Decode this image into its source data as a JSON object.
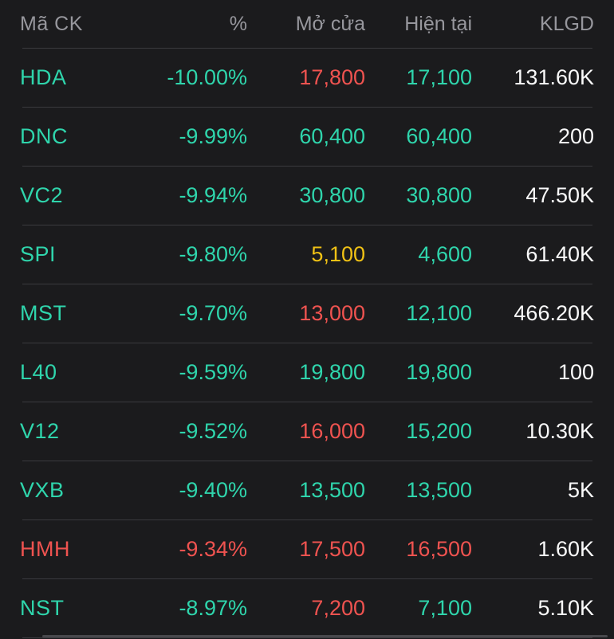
{
  "colors": {
    "background": "#1b1b1d",
    "divider": "#3a3a3e",
    "header_text": "#97979d",
    "scrollbar": "#48484c",
    "teal": "#2fd5ac",
    "red": "#ef5350",
    "yellow": "#f1c215",
    "white": "#fafafa"
  },
  "table": {
    "columns": [
      {
        "label": "Mã CK"
      },
      {
        "label": "%"
      },
      {
        "label": "Mở cửa"
      },
      {
        "label": "Hiện tại"
      },
      {
        "label": "KLGD"
      }
    ],
    "rows": [
      {
        "code": "HDA",
        "pct": "-10.00%",
        "open": "17,800",
        "current": "17,100",
        "volume": "131.60K",
        "code_color": "teal",
        "pct_color": "teal",
        "open_color": "red",
        "current_color": "teal",
        "volume_color": "white"
      },
      {
        "code": "DNC",
        "pct": "-9.99%",
        "open": "60,400",
        "current": "60,400",
        "volume": "200",
        "code_color": "teal",
        "pct_color": "teal",
        "open_color": "teal",
        "current_color": "teal",
        "volume_color": "white"
      },
      {
        "code": "VC2",
        "pct": "-9.94%",
        "open": "30,800",
        "current": "30,800",
        "volume": "47.50K",
        "code_color": "teal",
        "pct_color": "teal",
        "open_color": "teal",
        "current_color": "teal",
        "volume_color": "white"
      },
      {
        "code": "SPI",
        "pct": "-9.80%",
        "open": "5,100",
        "current": "4,600",
        "volume": "61.40K",
        "code_color": "teal",
        "pct_color": "teal",
        "open_color": "yellow",
        "current_color": "teal",
        "volume_color": "white"
      },
      {
        "code": "MST",
        "pct": "-9.70%",
        "open": "13,000",
        "current": "12,100",
        "volume": "466.20K",
        "code_color": "teal",
        "pct_color": "teal",
        "open_color": "red",
        "current_color": "teal",
        "volume_color": "white"
      },
      {
        "code": "L40",
        "pct": "-9.59%",
        "open": "19,800",
        "current": "19,800",
        "volume": "100",
        "code_color": "teal",
        "pct_color": "teal",
        "open_color": "teal",
        "current_color": "teal",
        "volume_color": "white"
      },
      {
        "code": "V12",
        "pct": "-9.52%",
        "open": "16,000",
        "current": "15,200",
        "volume": "10.30K",
        "code_color": "teal",
        "pct_color": "teal",
        "open_color": "red",
        "current_color": "teal",
        "volume_color": "white"
      },
      {
        "code": "VXB",
        "pct": "-9.40%",
        "open": "13,500",
        "current": "13,500",
        "volume": "5K",
        "code_color": "teal",
        "pct_color": "teal",
        "open_color": "teal",
        "current_color": "teal",
        "volume_color": "white"
      },
      {
        "code": "HMH",
        "pct": "-9.34%",
        "open": "17,500",
        "current": "16,500",
        "volume": "1.60K",
        "code_color": "red",
        "pct_color": "red",
        "open_color": "red",
        "current_color": "red",
        "volume_color": "white"
      },
      {
        "code": "NST",
        "pct": "-8.97%",
        "open": "7,200",
        "current": "7,100",
        "volume": "5.10K",
        "code_color": "teal",
        "pct_color": "teal",
        "open_color": "red",
        "current_color": "teal",
        "volume_color": "white"
      }
    ]
  }
}
